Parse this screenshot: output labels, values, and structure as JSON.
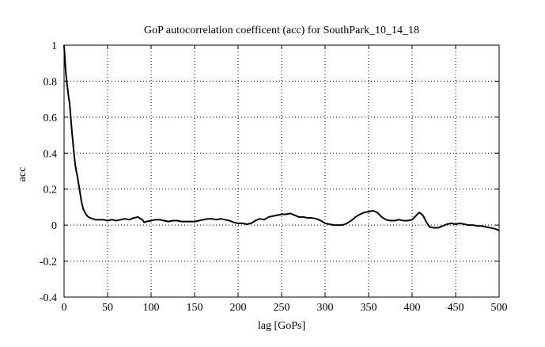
{
  "chart_data": {
    "type": "line",
    "title": "GoP autocorrelation coefficent (acc) for SouthPark_10_14_18",
    "xlabel": "lag [GoPs]",
    "ylabel": "acc",
    "xlim": [
      0,
      500
    ],
    "ylim": [
      -0.4,
      1
    ],
    "xticks": [
      0,
      50,
      100,
      150,
      200,
      250,
      300,
      350,
      400,
      450,
      500
    ],
    "yticks": [
      -0.4,
      -0.2,
      0,
      0.2,
      0.4,
      0.6,
      0.8,
      1
    ],
    "xtick_labels": [
      "0",
      "50",
      "100",
      "150",
      "200",
      "250",
      "300",
      "350",
      "400",
      "450",
      "500"
    ],
    "ytick_labels": [
      "-0.4",
      "-0.2",
      "0",
      "0.2",
      "0.4",
      "0.6",
      "0.8",
      "1"
    ],
    "grid": true,
    "grid_style": "dotted",
    "line_color": "#000000",
    "series": [
      {
        "x": [
          0,
          1,
          2,
          3,
          4,
          5,
          6,
          7,
          8,
          9,
          10,
          11,
          12,
          13,
          14,
          15,
          16,
          17,
          18,
          19,
          20,
          21,
          22,
          24,
          26,
          28,
          30,
          33,
          36,
          40,
          45,
          50,
          55,
          60,
          65,
          70,
          75,
          80,
          85,
          88,
          90,
          92,
          95,
          100,
          105,
          110,
          115,
          120,
          125,
          130,
          135,
          140,
          145,
          150,
          155,
          160,
          165,
          170,
          175,
          180,
          185,
          190,
          195,
          200,
          205,
          210,
          215,
          220,
          225,
          230,
          235,
          240,
          245,
          250,
          255,
          260,
          265,
          270,
          275,
          280,
          285,
          290,
          295,
          300,
          305,
          310,
          315,
          320,
          325,
          330,
          335,
          340,
          345,
          350,
          355,
          360,
          365,
          370,
          375,
          380,
          385,
          390,
          395,
          400,
          405,
          408,
          410,
          413,
          416,
          420,
          425,
          430,
          435,
          440,
          445,
          450,
          455,
          460,
          465,
          470,
          475,
          480,
          485,
          490,
          495,
          500
        ],
        "y": [
          1.0,
          0.92,
          0.85,
          0.8,
          0.76,
          0.72,
          0.69,
          0.64,
          0.58,
          0.52,
          0.47,
          0.42,
          0.37,
          0.33,
          0.3,
          0.28,
          0.25,
          0.22,
          0.19,
          0.16,
          0.13,
          0.11,
          0.09,
          0.07,
          0.055,
          0.045,
          0.04,
          0.035,
          0.03,
          0.03,
          0.03,
          0.025,
          0.03,
          0.025,
          0.03,
          0.035,
          0.03,
          0.04,
          0.045,
          0.035,
          0.03,
          0.015,
          0.02,
          0.025,
          0.03,
          0.03,
          0.025,
          0.02,
          0.025,
          0.025,
          0.02,
          0.02,
          0.02,
          0.02,
          0.025,
          0.03,
          0.035,
          0.035,
          0.03,
          0.035,
          0.03,
          0.025,
          0.015,
          0.01,
          0.01,
          0.005,
          0.01,
          0.025,
          0.035,
          0.03,
          0.045,
          0.05,
          0.055,
          0.06,
          0.06,
          0.065,
          0.055,
          0.045,
          0.045,
          0.04,
          0.04,
          0.035,
          0.025,
          0.01,
          0.005,
          0.0,
          0.0,
          0.0,
          0.01,
          0.025,
          0.045,
          0.06,
          0.07,
          0.075,
          0.08,
          0.07,
          0.045,
          0.03,
          0.025,
          0.025,
          0.03,
          0.025,
          0.025,
          0.03,
          0.055,
          0.07,
          0.065,
          0.05,
          0.02,
          -0.01,
          -0.015,
          -0.015,
          -0.005,
          0.005,
          0.01,
          0.005,
          0.01,
          0.005,
          0.0,
          0.0,
          -0.005,
          -0.005,
          -0.01,
          -0.015,
          -0.02,
          -0.03
        ]
      }
    ]
  }
}
